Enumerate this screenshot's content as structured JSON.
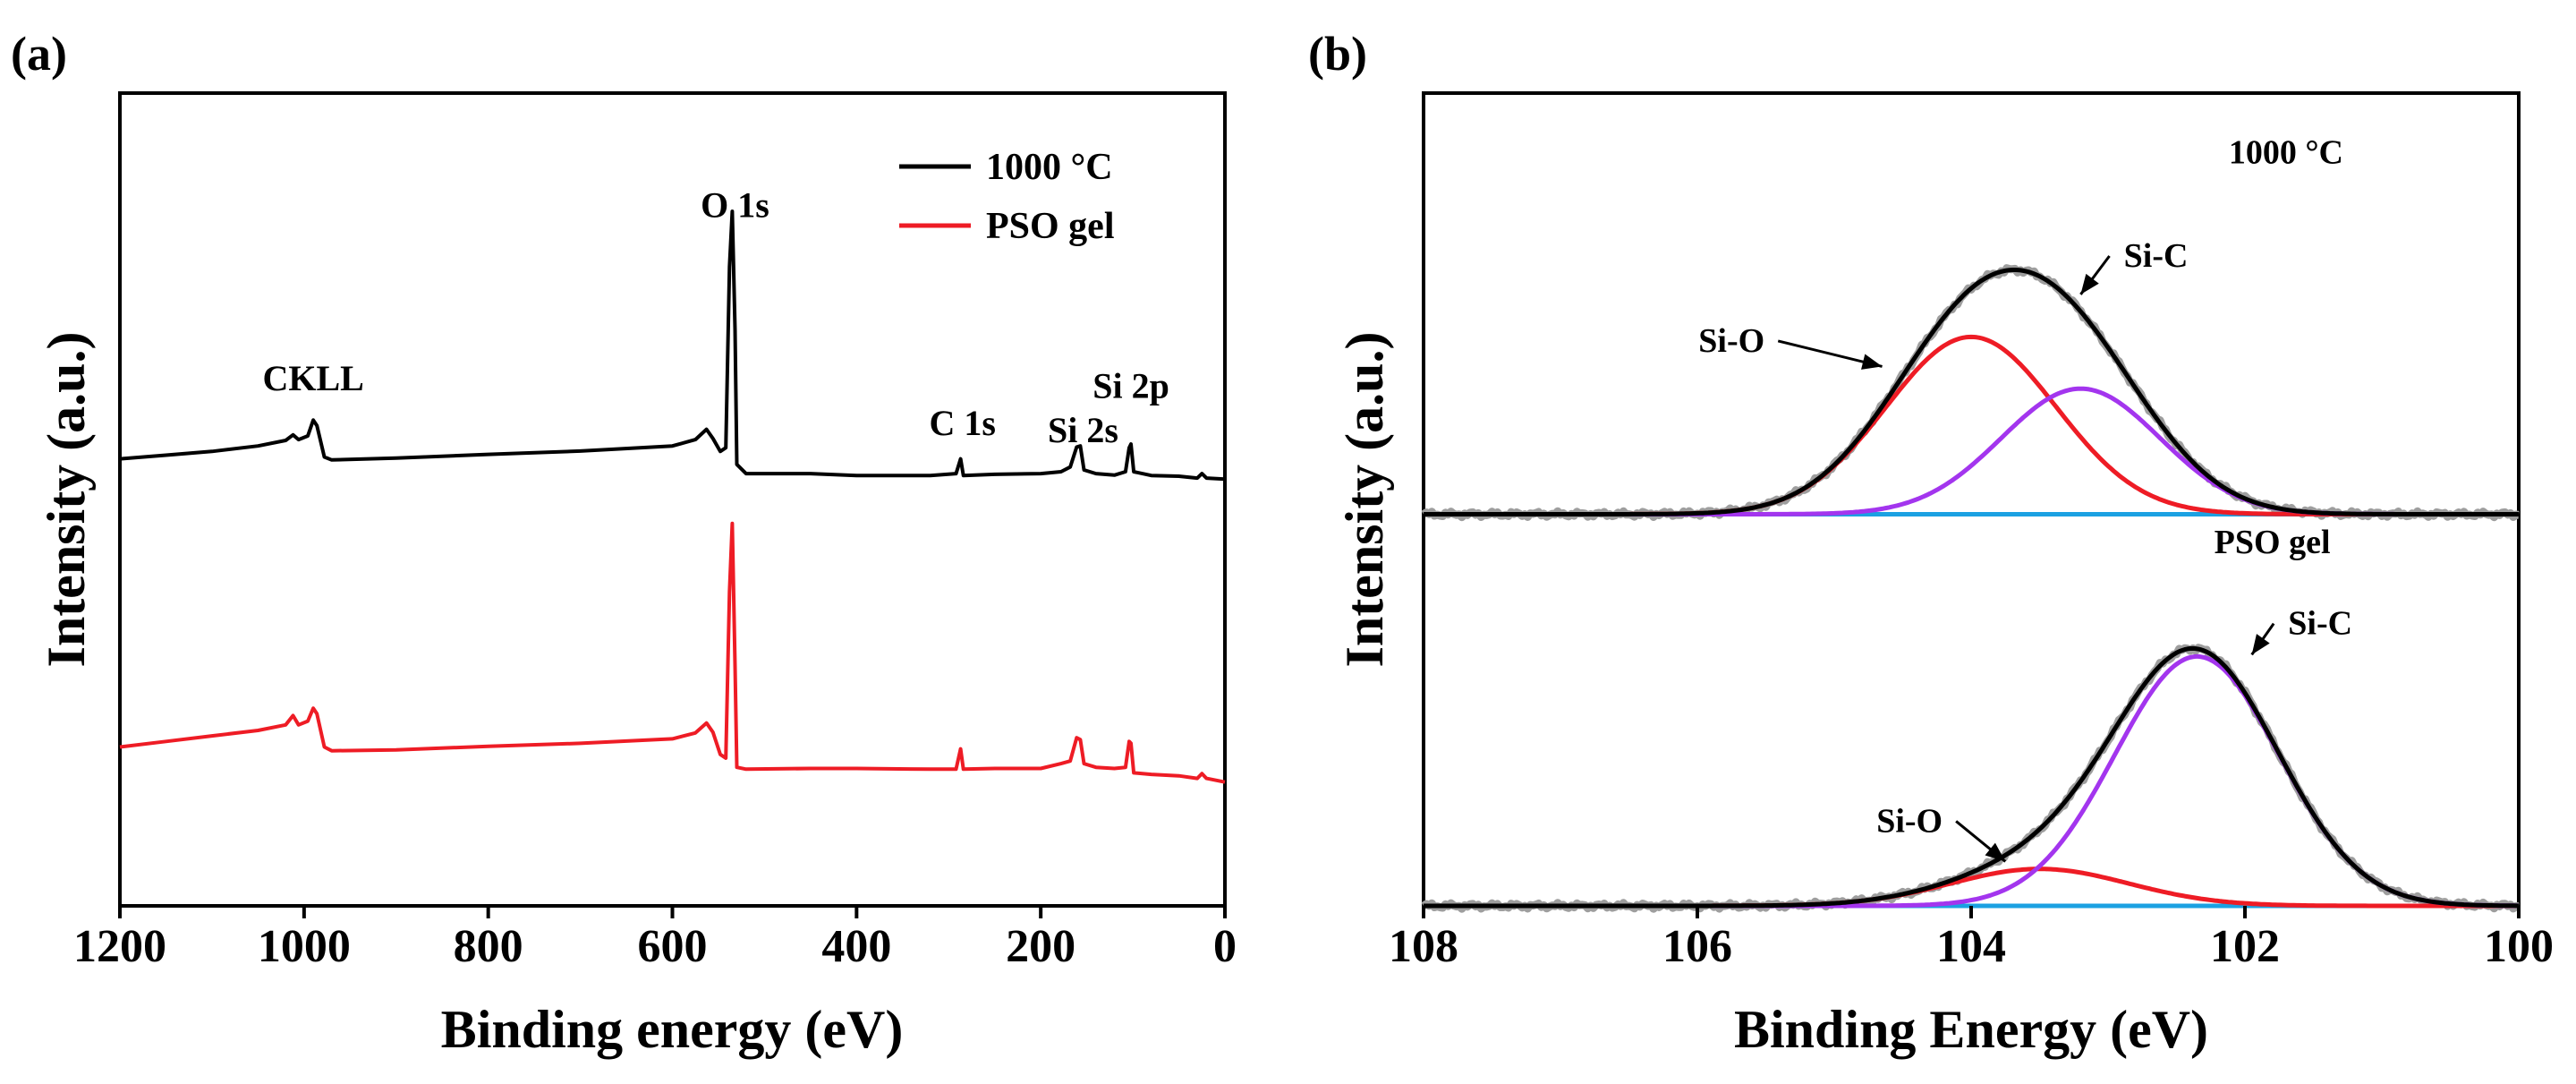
{
  "figure": {
    "panel_a_label": "(a)",
    "panel_b_label": "(b)"
  },
  "colors": {
    "black": "#000000",
    "red": "#ee1c25",
    "purple": "#a335ee",
    "blue": "#1ba1e2",
    "gray": "#9e9e9e"
  },
  "chart_data": [
    {
      "id": "a",
      "type": "line",
      "title": "",
      "xlabel": "Binding energy (eV)",
      "ylabel": "Intensity (a.u.)",
      "xlim": [
        1200,
        0
      ],
      "ylim": [
        0,
        2.2
      ],
      "x_reversed": true,
      "xticks": [
        1200,
        1000,
        800,
        600,
        400,
        200,
        0
      ],
      "y_ticks_shown": false,
      "legend": {
        "position": "top-right",
        "entries": [
          {
            "label": "1000 °C",
            "color_key": "black"
          },
          {
            "label": "PSO gel",
            "color_key": "red"
          }
        ]
      },
      "annotations": [
        {
          "text": "CKLL",
          "x": 990,
          "y": 1.395
        },
        {
          "text": "O 1s",
          "x": 532,
          "y": 1.865
        },
        {
          "text": "C 1s",
          "x": 285,
          "y": 1.275
        },
        {
          "text": "Si 2s",
          "x": 154,
          "y": 1.255
        },
        {
          "text": "Si 2p",
          "x": 102,
          "y": 1.375
        }
      ],
      "series": [
        {
          "name": "1000 °C",
          "color_key": "black",
          "points": [
            [
              1200,
              1.21
            ],
            [
              1150,
              1.22
            ],
            [
              1100,
              1.23
            ],
            [
              1050,
              1.245
            ],
            [
              1020,
              1.26
            ],
            [
              1012,
              1.275
            ],
            [
              1006,
              1.262
            ],
            [
              996,
              1.272
            ],
            [
              990,
              1.315
            ],
            [
              986,
              1.3
            ],
            [
              978,
              1.215
            ],
            [
              970,
              1.207
            ],
            [
              900,
              1.212
            ],
            [
              800,
              1.222
            ],
            [
              700,
              1.231
            ],
            [
              600,
              1.245
            ],
            [
              575,
              1.262
            ],
            [
              563,
              1.29
            ],
            [
              556,
              1.265
            ],
            [
              548,
              1.23
            ],
            [
              542,
              1.24
            ],
            [
              538,
              1.73
            ],
            [
              535,
              1.88
            ],
            [
              532,
              1.56
            ],
            [
              530,
              1.195
            ],
            [
              520,
              1.17
            ],
            [
              450,
              1.17
            ],
            [
              400,
              1.165
            ],
            [
              320,
              1.165
            ],
            [
              292,
              1.17
            ],
            [
              287,
              1.21
            ],
            [
              284,
              1.165
            ],
            [
              250,
              1.168
            ],
            [
              200,
              1.17
            ],
            [
              178,
              1.175
            ],
            [
              168,
              1.188
            ],
            [
              161,
              1.242
            ],
            [
              157,
              1.245
            ],
            [
              153,
              1.18
            ],
            [
              140,
              1.17
            ],
            [
              120,
              1.166
            ],
            [
              108,
              1.175
            ],
            [
              104,
              1.24
            ],
            [
              102,
              1.25
            ],
            [
              99,
              1.175
            ],
            [
              80,
              1.165
            ],
            [
              50,
              1.163
            ],
            [
              30,
              1.158
            ],
            [
              25,
              1.17
            ],
            [
              20,
              1.158
            ],
            [
              0,
              1.155
            ]
          ]
        },
        {
          "name": "PSO gel",
          "color_key": "red",
          "points": [
            [
              1200,
              0.43
            ],
            [
              1150,
              0.445
            ],
            [
              1100,
              0.46
            ],
            [
              1050,
              0.475
            ],
            [
              1020,
              0.49
            ],
            [
              1012,
              0.515
            ],
            [
              1006,
              0.49
            ],
            [
              996,
              0.5
            ],
            [
              990,
              0.535
            ],
            [
              986,
              0.52
            ],
            [
              978,
              0.43
            ],
            [
              970,
              0.42
            ],
            [
              900,
              0.422
            ],
            [
              800,
              0.432
            ],
            [
              700,
              0.44
            ],
            [
              600,
              0.452
            ],
            [
              575,
              0.468
            ],
            [
              563,
              0.495
            ],
            [
              556,
              0.47
            ],
            [
              548,
              0.41
            ],
            [
              542,
              0.4
            ],
            [
              538,
              0.85
            ],
            [
              535,
              1.035
            ],
            [
              532,
              0.65
            ],
            [
              530,
              0.375
            ],
            [
              520,
              0.37
            ],
            [
              450,
              0.372
            ],
            [
              400,
              0.372
            ],
            [
              320,
              0.37
            ],
            [
              292,
              0.37
            ],
            [
              287,
              0.425
            ],
            [
              284,
              0.37
            ],
            [
              250,
              0.372
            ],
            [
              200,
              0.372
            ],
            [
              178,
              0.385
            ],
            [
              168,
              0.392
            ],
            [
              161,
              0.455
            ],
            [
              157,
              0.45
            ],
            [
              153,
              0.385
            ],
            [
              140,
              0.375
            ],
            [
              120,
              0.372
            ],
            [
              108,
              0.375
            ],
            [
              104,
              0.445
            ],
            [
              102,
              0.44
            ],
            [
              99,
              0.36
            ],
            [
              80,
              0.356
            ],
            [
              50,
              0.352
            ],
            [
              30,
              0.345
            ],
            [
              25,
              0.358
            ],
            [
              20,
              0.345
            ],
            [
              0,
              0.335
            ]
          ]
        }
      ]
    },
    {
      "id": "b",
      "type": "line",
      "title": "",
      "xlabel": "Binding Energy (eV)",
      "ylabel": "Intensity (a.u.)",
      "xlim": [
        108,
        100
      ],
      "ylim": [
        0,
        2.2
      ],
      "x_reversed": true,
      "xticks": [
        108,
        106,
        104,
        102,
        100
      ],
      "y_ticks_shown": false,
      "annotations": [
        {
          "text": "1000 °C",
          "x": 101.7,
          "y": 2.01
        },
        {
          "text": "PSO gel",
          "x": 101.8,
          "y": 0.955
        },
        {
          "text": "Si-O",
          "x": 105.75,
          "y": 1.5,
          "arrow_to": [
            104.65,
            1.46
          ]
        },
        {
          "text": "Si-C",
          "x": 102.65,
          "y": 1.73,
          "arrow_to": [
            103.2,
            1.655
          ]
        },
        {
          "text": "Si-C",
          "x": 101.45,
          "y": 0.735,
          "arrow_to": [
            101.95,
            0.68
          ]
        },
        {
          "text": "Si-O",
          "x": 104.45,
          "y": 0.2,
          "arrow_to": [
            103.75,
            0.12
          ]
        }
      ],
      "series": [
        {
          "name": "1000 °C raw",
          "color_key": "gray",
          "model": "gauss_sum",
          "baseline": 1.06,
          "peaks": [
            [
              104.0,
              0.48,
              0.62
            ],
            [
              103.2,
              0.34,
              0.58
            ]
          ],
          "jitter": 0.008
        },
        {
          "name": "1000 °C baseline",
          "color_key": "blue",
          "model": "linear",
          "from": [
            108,
            1.06
          ],
          "to": [
            100,
            1.06
          ]
        },
        {
          "name": "1000 °C Si-O",
          "color_key": "red",
          "model": "gauss_sum",
          "baseline": 1.06,
          "peaks": [
            [
              104.0,
              0.48,
              0.62
            ]
          ]
        },
        {
          "name": "1000 °C Si-C",
          "color_key": "purple",
          "model": "gauss_sum",
          "baseline": 1.06,
          "peaks": [
            [
              103.2,
              0.34,
              0.58
            ]
          ]
        },
        {
          "name": "1000 °C envelope",
          "color_key": "black",
          "model": "gauss_sum",
          "baseline": 1.06,
          "peaks": [
            [
              104.0,
              0.48,
              0.62
            ],
            [
              103.2,
              0.34,
              0.58
            ]
          ]
        },
        {
          "name": "PSO gel raw",
          "color_key": "gray",
          "model": "gauss_sum",
          "baseline": 0.0,
          "peaks": [
            [
              103.5,
              0.1,
              0.65
            ],
            [
              102.35,
              0.675,
              0.6
            ]
          ],
          "jitter": 0.008
        },
        {
          "name": "PSO gel baseline",
          "color_key": "blue",
          "model": "linear",
          "from": [
            108,
            0.0
          ],
          "to": [
            100,
            0.0
          ]
        },
        {
          "name": "PSO gel Si-O",
          "color_key": "red",
          "model": "gauss_sum",
          "baseline": 0.0,
          "peaks": [
            [
              103.5,
              0.1,
              0.65
            ]
          ]
        },
        {
          "name": "PSO gel Si-C",
          "color_key": "purple",
          "model": "gauss_sum",
          "baseline": 0.0,
          "peaks": [
            [
              102.35,
              0.675,
              0.6
            ]
          ]
        },
        {
          "name": "PSO gel envelope",
          "color_key": "black",
          "model": "gauss_sum",
          "baseline": 0.0,
          "peaks": [
            [
              103.5,
              0.1,
              0.65
            ],
            [
              102.35,
              0.675,
              0.6
            ]
          ]
        }
      ]
    }
  ]
}
